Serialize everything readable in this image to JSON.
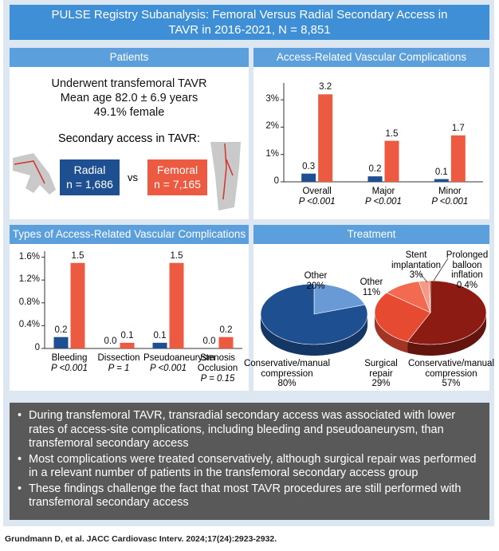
{
  "header": {
    "title": "PULSE Registry Subanalysis: Femoral Versus Radial Secondary Access in TAVR in 2016-2021, N = 8,851"
  },
  "patients": {
    "heading": "Patients",
    "lines": [
      "Underwent transfemoral TAVR",
      "Mean age 82.0 ± 6.9 years",
      "49.1% female"
    ],
    "access_heading": "Secondary access in TAVR:",
    "radial_n": "n = 1,686",
    "vs": "vs",
    "femoral_n": "n = 7,165"
  },
  "panels": [
    "Access-Related Vascular Complications",
    "Types of Access-Related Vascular Complications",
    "Treatment"
  ],
  "chart_data": [
    {
      "type": "bar",
      "categories": [
        "Overall",
        "Major",
        "Minor"
      ],
      "p_values": [
        "P <0.001",
        "P <0.001",
        "P <0.001"
      ],
      "series": [
        {
          "name": "Radial",
          "color": "#1d4f91",
          "values": [
            0.3,
            0.2,
            0.1
          ]
        },
        {
          "name": "Femoral",
          "color": "#ec5a41",
          "values": [
            3.2,
            1.5,
            1.7
          ]
        }
      ],
      "ylim": [
        0,
        3.5
      ],
      "yticks": [
        0,
        {
          "value": 1,
          "label": "1%"
        },
        {
          "value": 2,
          "label": "2%"
        },
        {
          "value": 3,
          "label": "3%"
        }
      ]
    },
    {
      "type": "bar",
      "categories": [
        "Bleeding",
        "Dissection",
        "Pseudoaneurysm",
        "Stenosis Occlusion"
      ],
      "p_values": [
        "P <0.001",
        "P = 1",
        "P <0.001",
        "P = 0.15"
      ],
      "series": [
        {
          "color": "#1d4f91",
          "values": [
            0.2,
            0,
            0.1,
            0
          ],
          "value_labels": [
            "0.2",
            "0.0",
            "0.1",
            "0.0"
          ]
        },
        {
          "color": "#ec5a41",
          "values": [
            1.5,
            0.1,
            1.5,
            0.2
          ]
        }
      ],
      "ylim": [
        0,
        1.65
      ],
      "yticks": [
        0,
        {
          "value": 0.4,
          "label": "0.4%"
        },
        {
          "value": 0.8,
          "label": "0.8%"
        },
        {
          "value": 1.2,
          "label": "1.2%"
        },
        {
          "value": 1.6,
          "label": "1.6%"
        }
      ]
    },
    {
      "type": "pie",
      "categories": [
        "Other",
        "Conservative/manual compression"
      ],
      "values": [
        20,
        80
      ],
      "value_labels": [
        "20%",
        "80%"
      ],
      "colors": [
        "#6a9ad6",
        "#1d4f91"
      ]
    },
    {
      "type": "pie",
      "categories": [
        "Conservative/manual compression",
        "Surgical repair",
        "Other",
        "Stent implantation",
        "Prolonged balloon inflation"
      ],
      "values": [
        57,
        29,
        11,
        3,
        0.4
      ],
      "value_labels": [
        "57%",
        "29%",
        "11%",
        "3%",
        "0.4%"
      ],
      "colors": [
        "#8c1c13",
        "#e64a31",
        "#f26a4f",
        "#f59a86",
        "#c43a28"
      ]
    }
  ],
  "bullets": [
    "During transfemoral TAVR, transradial secondary access was associated with lower rates of access-site complications, including bleeding and pseudoaneurysm, than transfemoral secondary access",
    "Most complications were treated conservatively, although surgical repair was performed in a relevant number of patients in the transfemoral secondary access group",
    "These findings challenge the fact that most TAVR procedures are still performed with transfemoral secondary access"
  ],
  "citation": "Grundmann D, et al. JACC Cardiovasc Interv. 2024;17(24):2923-2932."
}
